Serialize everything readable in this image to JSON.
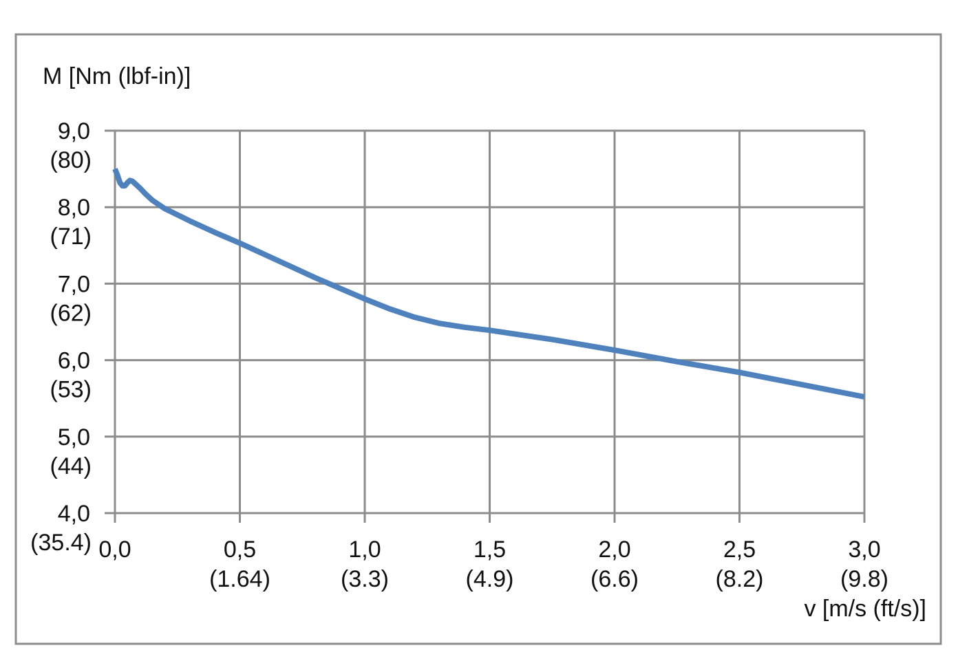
{
  "chart_data": {
    "type": "line",
    "ylabel": "M [Nm (lbf-in)]",
    "xlabel": "v [m/s (ft/s)]",
    "xlim": [
      0,
      3
    ],
    "ylim": [
      4,
      9
    ],
    "grid": true,
    "x_ticks": [
      {
        "value": 0.0,
        "label": "0,0",
        "sublabel": ""
      },
      {
        "value": 0.5,
        "label": "0,5",
        "sublabel": "(1.64)"
      },
      {
        "value": 1.0,
        "label": "1,0",
        "sublabel": "(3.3)"
      },
      {
        "value": 1.5,
        "label": "1,5",
        "sublabel": "(4.9)"
      },
      {
        "value": 2.0,
        "label": "2,0",
        "sublabel": "(6.6)"
      },
      {
        "value": 2.5,
        "label": "2,5",
        "sublabel": "(8.2)"
      },
      {
        "value": 3.0,
        "label": "3,0",
        "sublabel": "(9.8)"
      }
    ],
    "y_ticks": [
      {
        "value": 9,
        "label": "9,0",
        "sublabel": "(80)"
      },
      {
        "value": 8,
        "label": "8,0",
        "sublabel": "(71)"
      },
      {
        "value": 7,
        "label": "7,0",
        "sublabel": "(62)"
      },
      {
        "value": 6,
        "label": "6,0",
        "sublabel": "(53)"
      },
      {
        "value": 5,
        "label": "5,0",
        "sublabel": "(44)"
      },
      {
        "value": 4,
        "label": "4,0",
        "sublabel": "(35.4)"
      }
    ],
    "series": [
      {
        "color": "#4f81bd",
        "x": [
          0.0,
          0.01,
          0.02,
          0.03,
          0.04,
          0.05,
          0.06,
          0.07,
          0.08,
          0.1,
          0.12,
          0.15,
          0.2,
          0.3,
          0.4,
          0.5,
          0.6,
          0.7,
          0.8,
          0.9,
          1.0,
          1.1,
          1.2,
          1.3,
          1.4,
          1.5,
          1.75,
          2.0,
          2.25,
          2.5,
          2.75,
          3.0
        ],
        "y": [
          8.5,
          8.42,
          8.32,
          8.28,
          8.28,
          8.32,
          8.35,
          8.34,
          8.31,
          8.25,
          8.18,
          8.09,
          7.98,
          7.82,
          7.67,
          7.53,
          7.38,
          7.23,
          7.08,
          6.94,
          6.8,
          6.67,
          6.56,
          6.48,
          6.43,
          6.39,
          6.27,
          6.13,
          5.98,
          5.84,
          5.68,
          5.52
        ]
      }
    ]
  }
}
